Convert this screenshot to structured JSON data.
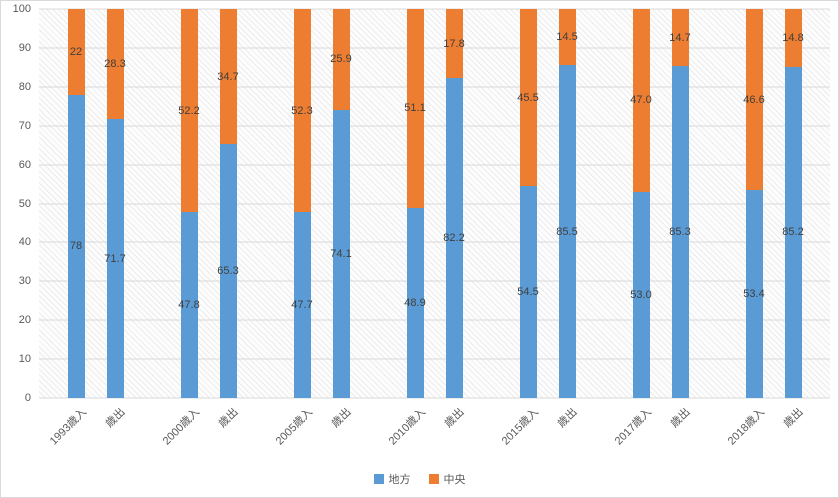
{
  "chart_data": {
    "type": "bar",
    "stacked": true,
    "title": "",
    "categories": [
      "1993歳入",
      "歳出",
      "2000歳入",
      "歳出",
      "2005歳入",
      "歳出",
      "2010歳入",
      "歳出",
      "2015歳入",
      "歳出",
      "2017歳入",
      "歳出",
      "2018歳入",
      "歳出"
    ],
    "grouping": "pairs",
    "series": [
      {
        "name": "地方",
        "color": "#5B9BD5",
        "values": [
          78,
          71.7,
          47.8,
          65.3,
          47.7,
          74.1,
          48.9,
          82.2,
          54.5,
          85.5,
          53,
          85.3,
          53.4,
          85.2
        ],
        "labels": [
          "78",
          "71.7",
          "47.8",
          "65.3",
          "47.7",
          "74.1",
          "48.9",
          "82.2",
          "54.5",
          "85.5",
          "53.0",
          "85.3",
          "53.4",
          "85.2"
        ]
      },
      {
        "name": "中央",
        "color": "#ED7D31",
        "values": [
          22,
          28.3,
          52.2,
          34.7,
          52.3,
          25.9,
          51.1,
          17.8,
          45.5,
          14.5,
          47,
          14.7,
          46.6,
          14.8
        ],
        "labels": [
          "22",
          "28.3",
          "52.2",
          "34.7",
          "52.3",
          "25.9",
          "51.1",
          "17.8",
          "45.5",
          "14.5",
          "47.0",
          "14.7",
          "46.6",
          "14.8"
        ]
      }
    ],
    "ylim": [
      0,
      100
    ],
    "yticks": [
      0,
      10,
      20,
      30,
      40,
      50,
      60,
      70,
      80,
      90,
      100
    ],
    "grid": true,
    "plot_fill": "diagonal-hatch",
    "data_label_color": "#3f3f3f",
    "axis_text_color": "#595959",
    "gridline_color": "#d9d9d9",
    "legend": {
      "position": "bottom",
      "items": [
        {
          "label": "地方",
          "color": "#5B9BD5"
        },
        {
          "label": "中央",
          "color": "#ED7D31"
        }
      ]
    }
  }
}
